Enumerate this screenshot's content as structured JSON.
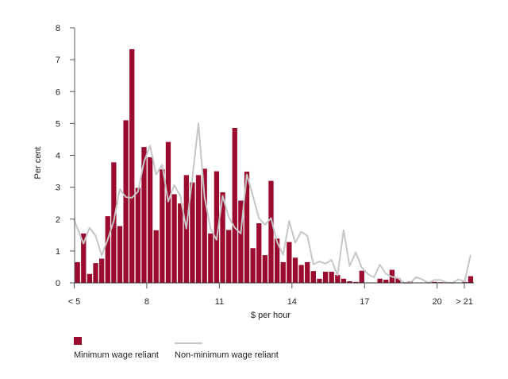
{
  "chart_data": {
    "type": "bar",
    "title": "",
    "xlabel": "$ per hour",
    "ylabel": "Per cent",
    "ylim": [
      0,
      8
    ],
    "yticks": [
      "0",
      "1",
      "2",
      "3",
      "4",
      "5",
      "6",
      "7",
      "8"
    ],
    "xticks": [
      {
        "label": "< 5",
        "bin": 0
      },
      {
        "label": "8",
        "bin": 12
      },
      {
        "label": "11",
        "bin": 24
      },
      {
        "label": "14",
        "bin": 36
      },
      {
        "label": "17",
        "bin": 48
      },
      {
        "label": "20",
        "bin": 60
      },
      {
        "label": "> 21",
        "bin": 64.5
      }
    ],
    "bin_width_dollars": 0.25,
    "grid": false,
    "legend_placement": "bottom-left",
    "series": [
      {
        "name": "Minimum wage reliant",
        "kind": "bar",
        "color": "#9b0b2f",
        "values": [
          0.65,
          1.55,
          0.28,
          0.62,
          0.76,
          2.09,
          3.78,
          1.78,
          5.1,
          7.33,
          2.98,
          4.26,
          3.94,
          1.65,
          3.56,
          4.42,
          2.78,
          2.49,
          3.38,
          3.15,
          3.38,
          3.58,
          1.55,
          3.5,
          2.84,
          1.66,
          4.86,
          2.58,
          3.49,
          1.09,
          1.87,
          0.87,
          3.2,
          1.39,
          0.65,
          1.28,
          0.79,
          0.56,
          0.65,
          0.37,
          0.13,
          0.35,
          0.35,
          0.25,
          0.13,
          0.05,
          0.03,
          0.38,
          0,
          0,
          0.13,
          0.1,
          0.41,
          0.14,
          0,
          0.04,
          0,
          0,
          0,
          0.03,
          0.02,
          0,
          0,
          0,
          0.03,
          0.21
        ]
      },
      {
        "name": "Non-minimum wage reliant",
        "kind": "line",
        "color": "#c6c6c6",
        "values": [
          2.0,
          1.23,
          1.73,
          1.48,
          0.86,
          1.36,
          1.94,
          2.94,
          2.69,
          2.67,
          2.86,
          3.8,
          4.3,
          3.4,
          3.7,
          2.55,
          3.07,
          2.73,
          1.7,
          3.3,
          5.0,
          2.7,
          1.7,
          1.35,
          2.73,
          2.07,
          1.73,
          1.55,
          3.4,
          2.73,
          2.03,
          1.82,
          2.03,
          1.28,
          0.88,
          1.94,
          1.26,
          1.6,
          1.48,
          0.58,
          0.67,
          0.6,
          0.72,
          0.23,
          1.65,
          0.53,
          0.96,
          0.48,
          0.28,
          0.17,
          0.57,
          0.28,
          0.19,
          0.15,
          0,
          0,
          0.18,
          0.11,
          0,
          0.09,
          0.09,
          0.01,
          0,
          0.11,
          0.04,
          0.88
        ]
      }
    ]
  }
}
